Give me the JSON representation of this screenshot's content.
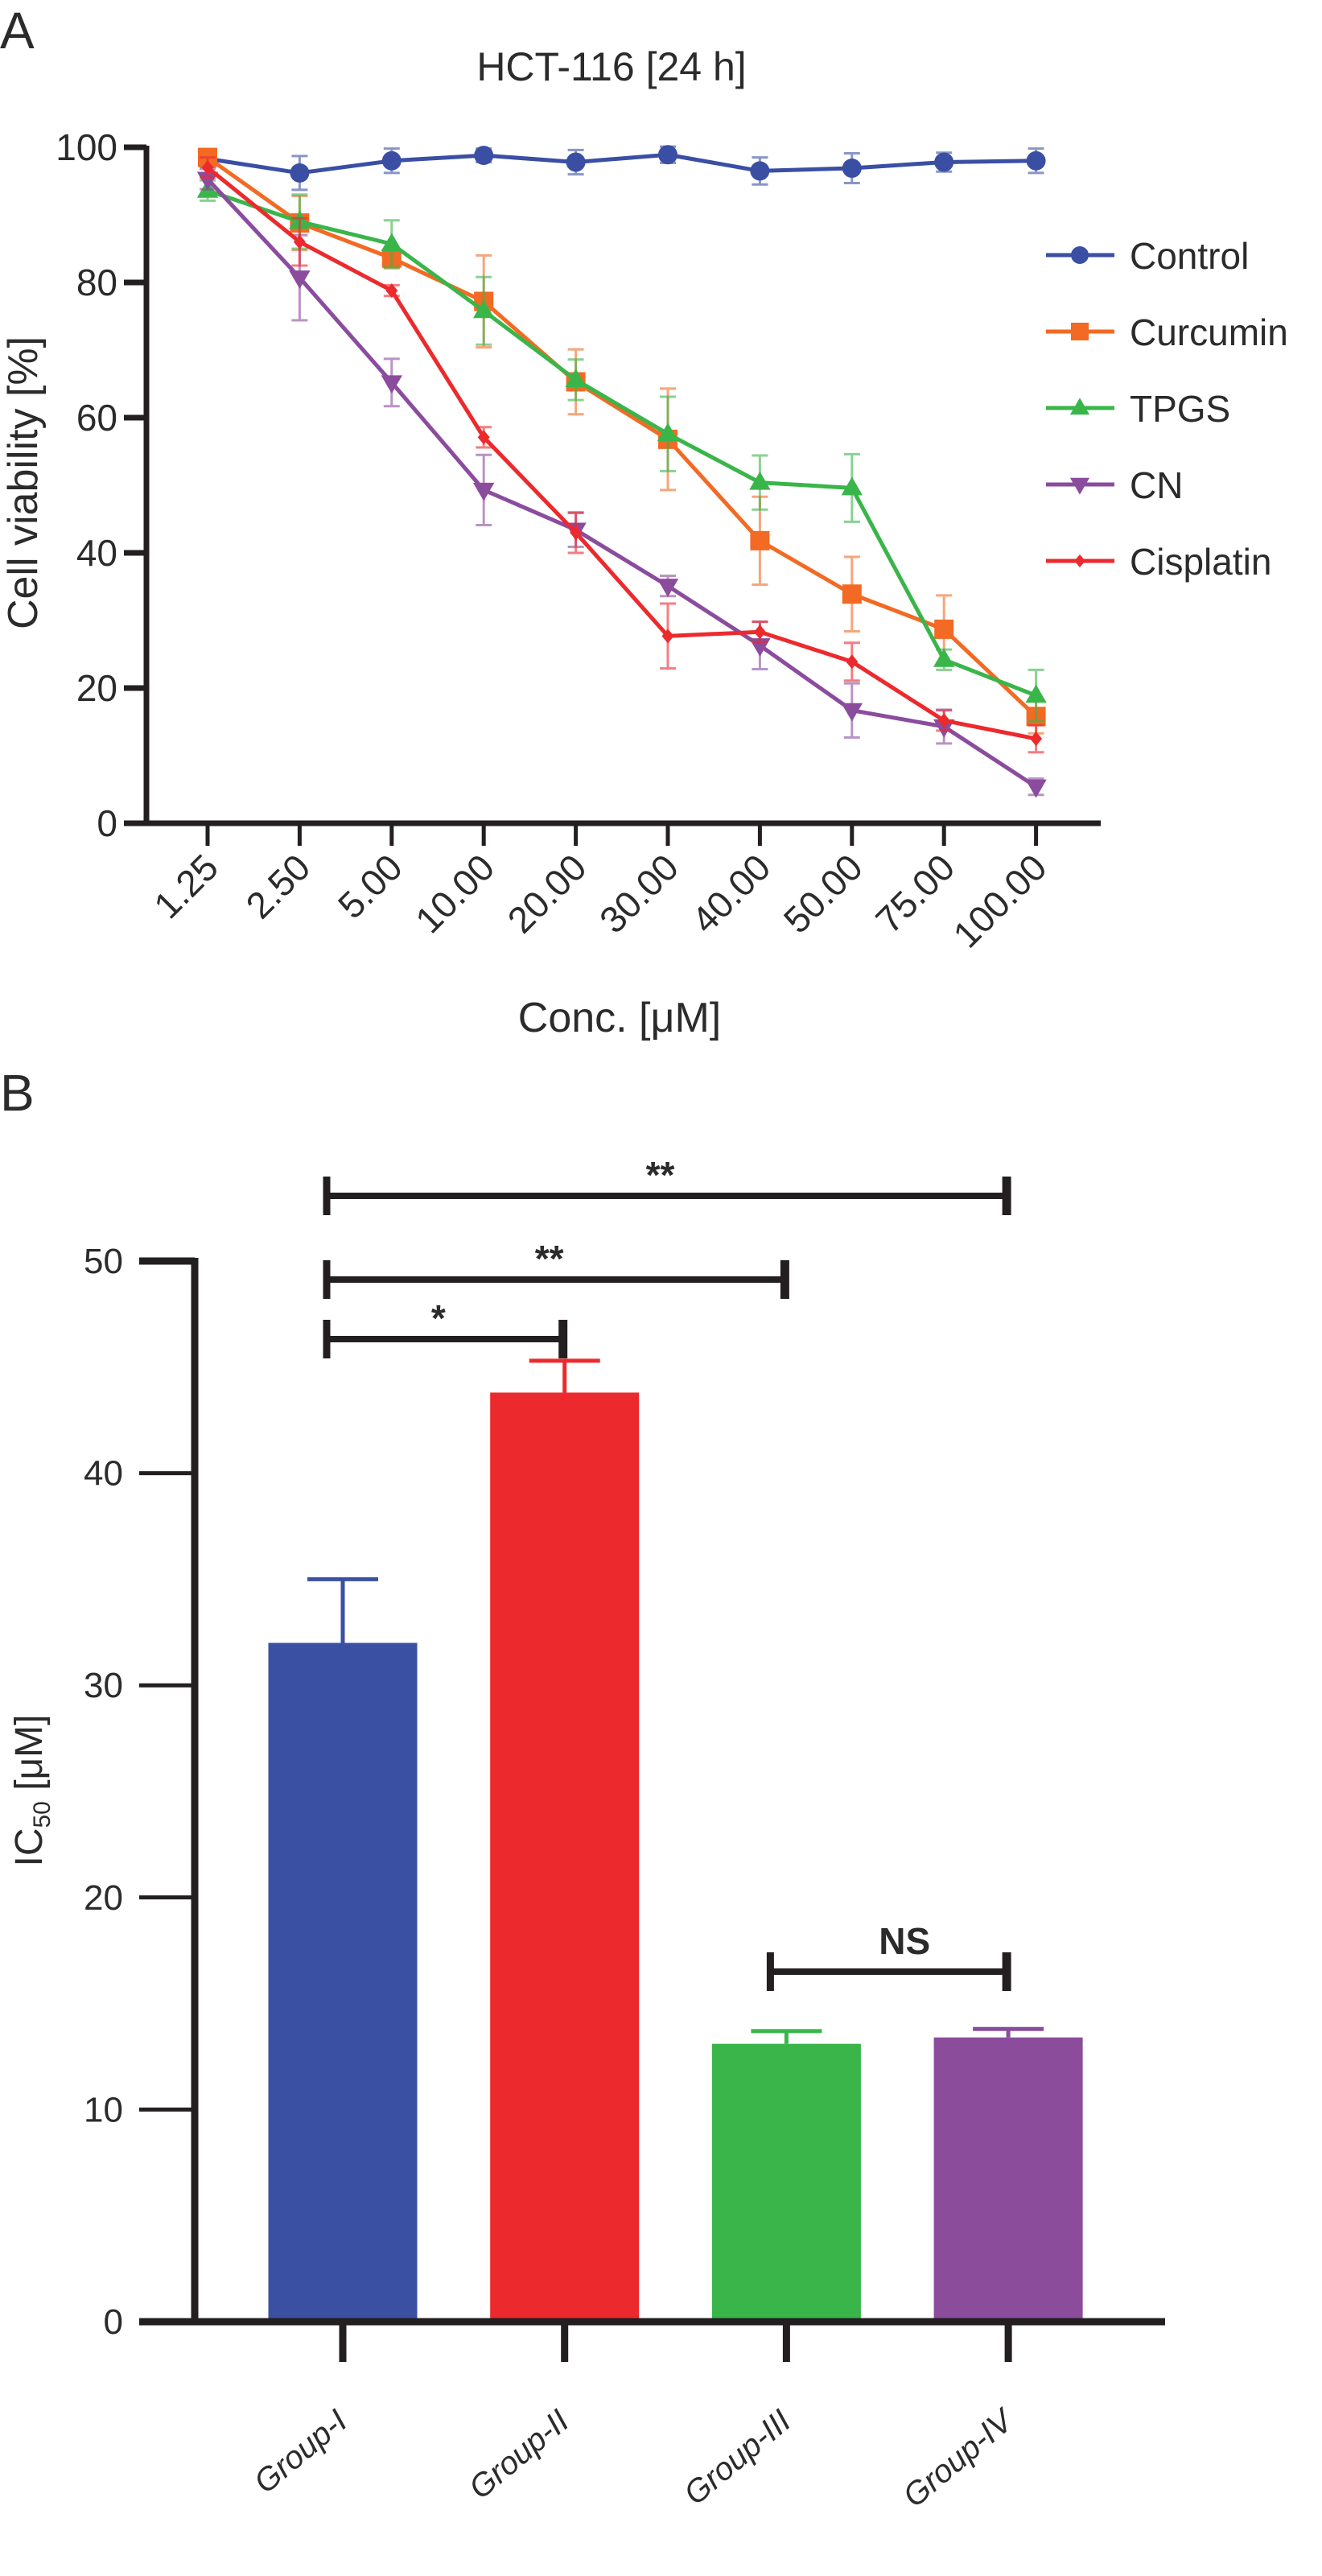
{
  "panels": {
    "a": {
      "letter": "A"
    },
    "b": {
      "letter": "B"
    }
  },
  "chart_data": [
    {
      "type": "line",
      "title": "HCT-116 [24 h]",
      "xlabel": "Conc. [μM]",
      "ylabel": "Cell viability [%]",
      "x": [
        "1.25",
        "2.50",
        "5.00",
        "10.00",
        "20.00",
        "30.00",
        "40.00",
        "50.00",
        "75.00",
        "100.00"
      ],
      "ylim": [
        0,
        100
      ],
      "yticks": [
        0,
        20,
        40,
        60,
        80,
        100
      ],
      "grid": false,
      "legend_position": "right",
      "series": [
        {
          "name": "Control",
          "color": "#3a4fa3",
          "marker": "circle",
          "values": [
            98.3,
            96.2,
            98.0,
            98.8,
            97.8,
            98.9,
            96.5,
            96.9,
            97.8,
            98.0
          ],
          "errors": [
            1.2,
            2.5,
            1.8,
            1.0,
            1.8,
            1.2,
            2.0,
            2.2,
            1.4,
            1.8
          ]
        },
        {
          "name": "Curcumin",
          "color": "#f26a24",
          "marker": "square",
          "values": [
            98.5,
            88.8,
            83.6,
            77.2,
            65.3,
            56.8,
            41.8,
            33.9,
            28.7,
            15.8
          ],
          "errors": [
            1.0,
            4.0,
            1.5,
            6.8,
            4.8,
            7.5,
            6.5,
            5.5,
            5.0,
            2.5
          ]
        },
        {
          "name": "TPGS",
          "color": "#3ab54a",
          "marker": "triangle-up",
          "values": [
            93.6,
            89.0,
            85.7,
            75.8,
            65.6,
            57.6,
            50.4,
            49.6,
            24.2,
            18.9
          ],
          "errors": [
            1.5,
            4.0,
            3.5,
            5.0,
            3.0,
            5.5,
            4.0,
            5.0,
            1.5,
            3.8
          ]
        },
        {
          "name": "CN",
          "color": "#8b4c9e",
          "marker": "triangle-down",
          "values": [
            95.3,
            80.7,
            65.2,
            49.3,
            43.4,
            35.1,
            26.3,
            16.7,
            14.3,
            5.4
          ],
          "errors": [
            1.5,
            6.3,
            3.5,
            5.2,
            2.5,
            1.5,
            3.5,
            4.0,
            2.5,
            1.2
          ]
        },
        {
          "name": "Cisplatin",
          "color": "#ec2a2d",
          "marker": "diamond",
          "values": [
            97.0,
            86.0,
            78.8,
            57.1,
            43.0,
            27.7,
            28.3,
            23.9,
            15.2,
            12.5
          ],
          "errors": [
            1.5,
            3.5,
            0.8,
            1.5,
            3.0,
            4.8,
            1.5,
            2.8,
            1.5,
            2.0
          ]
        }
      ]
    },
    {
      "type": "bar",
      "title": "",
      "xlabel": "",
      "ylabel_main": "IC",
      "ylabel_sub": "50",
      "ylabel_unit": " [μM]",
      "categories": [
        "Group-I",
        "Group-II",
        "Group-III",
        "Group-IV"
      ],
      "values": [
        32.0,
        43.8,
        13.1,
        13.4
      ],
      "errors": [
        3.0,
        1.5,
        0.6,
        0.4
      ],
      "colors": [
        "#3a51a3",
        "#ec2a2d",
        "#3ab54a",
        "#8a4c9b"
      ],
      "ylim": [
        0,
        50
      ],
      "yticks": [
        0,
        10,
        20,
        30,
        40,
        50
      ],
      "grid": false,
      "significance": [
        {
          "from": "Group-I",
          "to": "Group-II",
          "label": "*"
        },
        {
          "from": "Group-I",
          "to": "Group-III",
          "label": "**"
        },
        {
          "from": "Group-I",
          "to": "Group-IV",
          "label": "**"
        },
        {
          "from": "Group-III",
          "to": "Group-IV",
          "label": "NS"
        }
      ]
    }
  ]
}
